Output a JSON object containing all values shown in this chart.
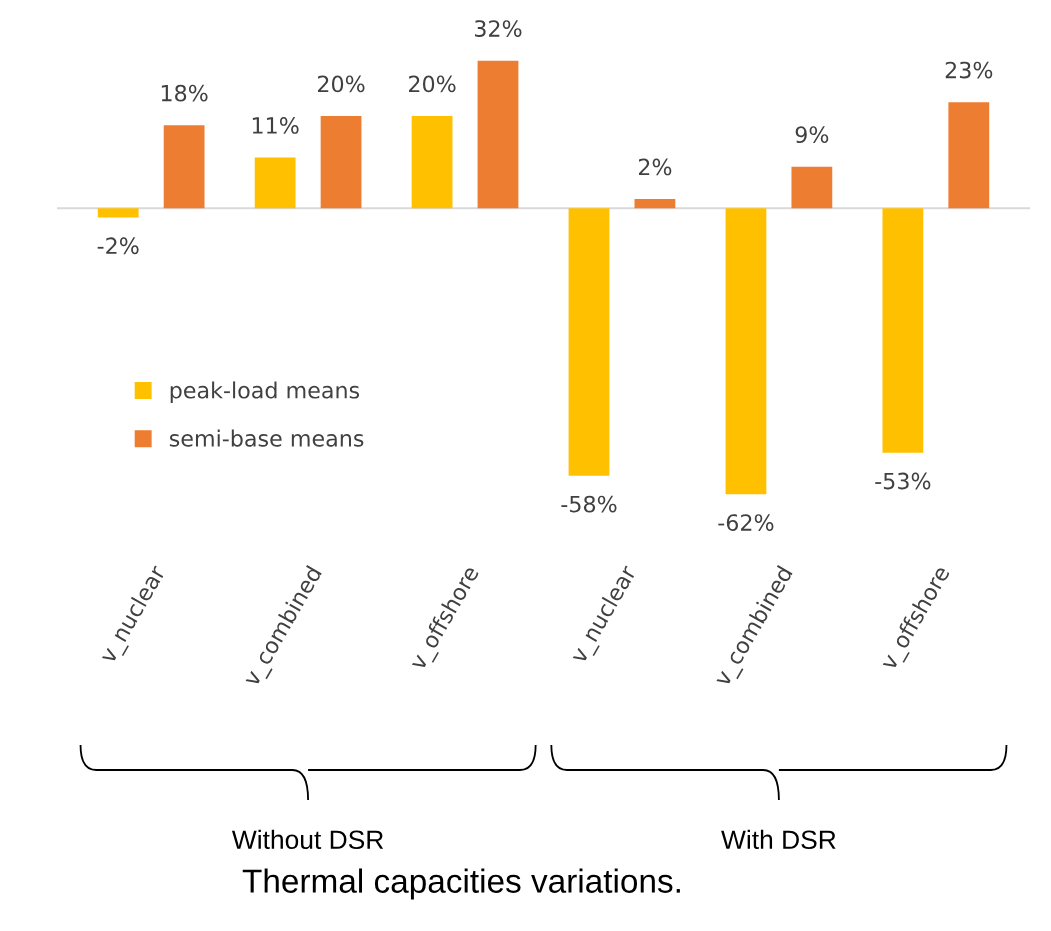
{
  "chart_data": {
    "type": "bar",
    "title": "Thermal capacities variations.",
    "categories": [
      "v_nuclear",
      "v_combined",
      "v_offshore",
      "v_nuclear",
      "v_combined",
      "v_offshore"
    ],
    "series": [
      {
        "name": "peak-load means",
        "color": "#ffc000",
        "values": [
          -2,
          11,
          20,
          -58,
          -62,
          -53
        ],
        "value_labels": [
          "-2%",
          "11%",
          "20%",
          "-58%",
          "-62%",
          "-53%"
        ]
      },
      {
        "name": "semi-base means",
        "color": "#ed7d31",
        "values": [
          18,
          20,
          32,
          2,
          9,
          23
        ],
        "value_labels": [
          "18%",
          "20%",
          "32%",
          "2%",
          "9%",
          "23%"
        ]
      }
    ],
    "legend": "left",
    "grid": false,
    "tick_labels": "x",
    "annotations": [
      "Without DSR",
      "With DSR"
    ]
  }
}
